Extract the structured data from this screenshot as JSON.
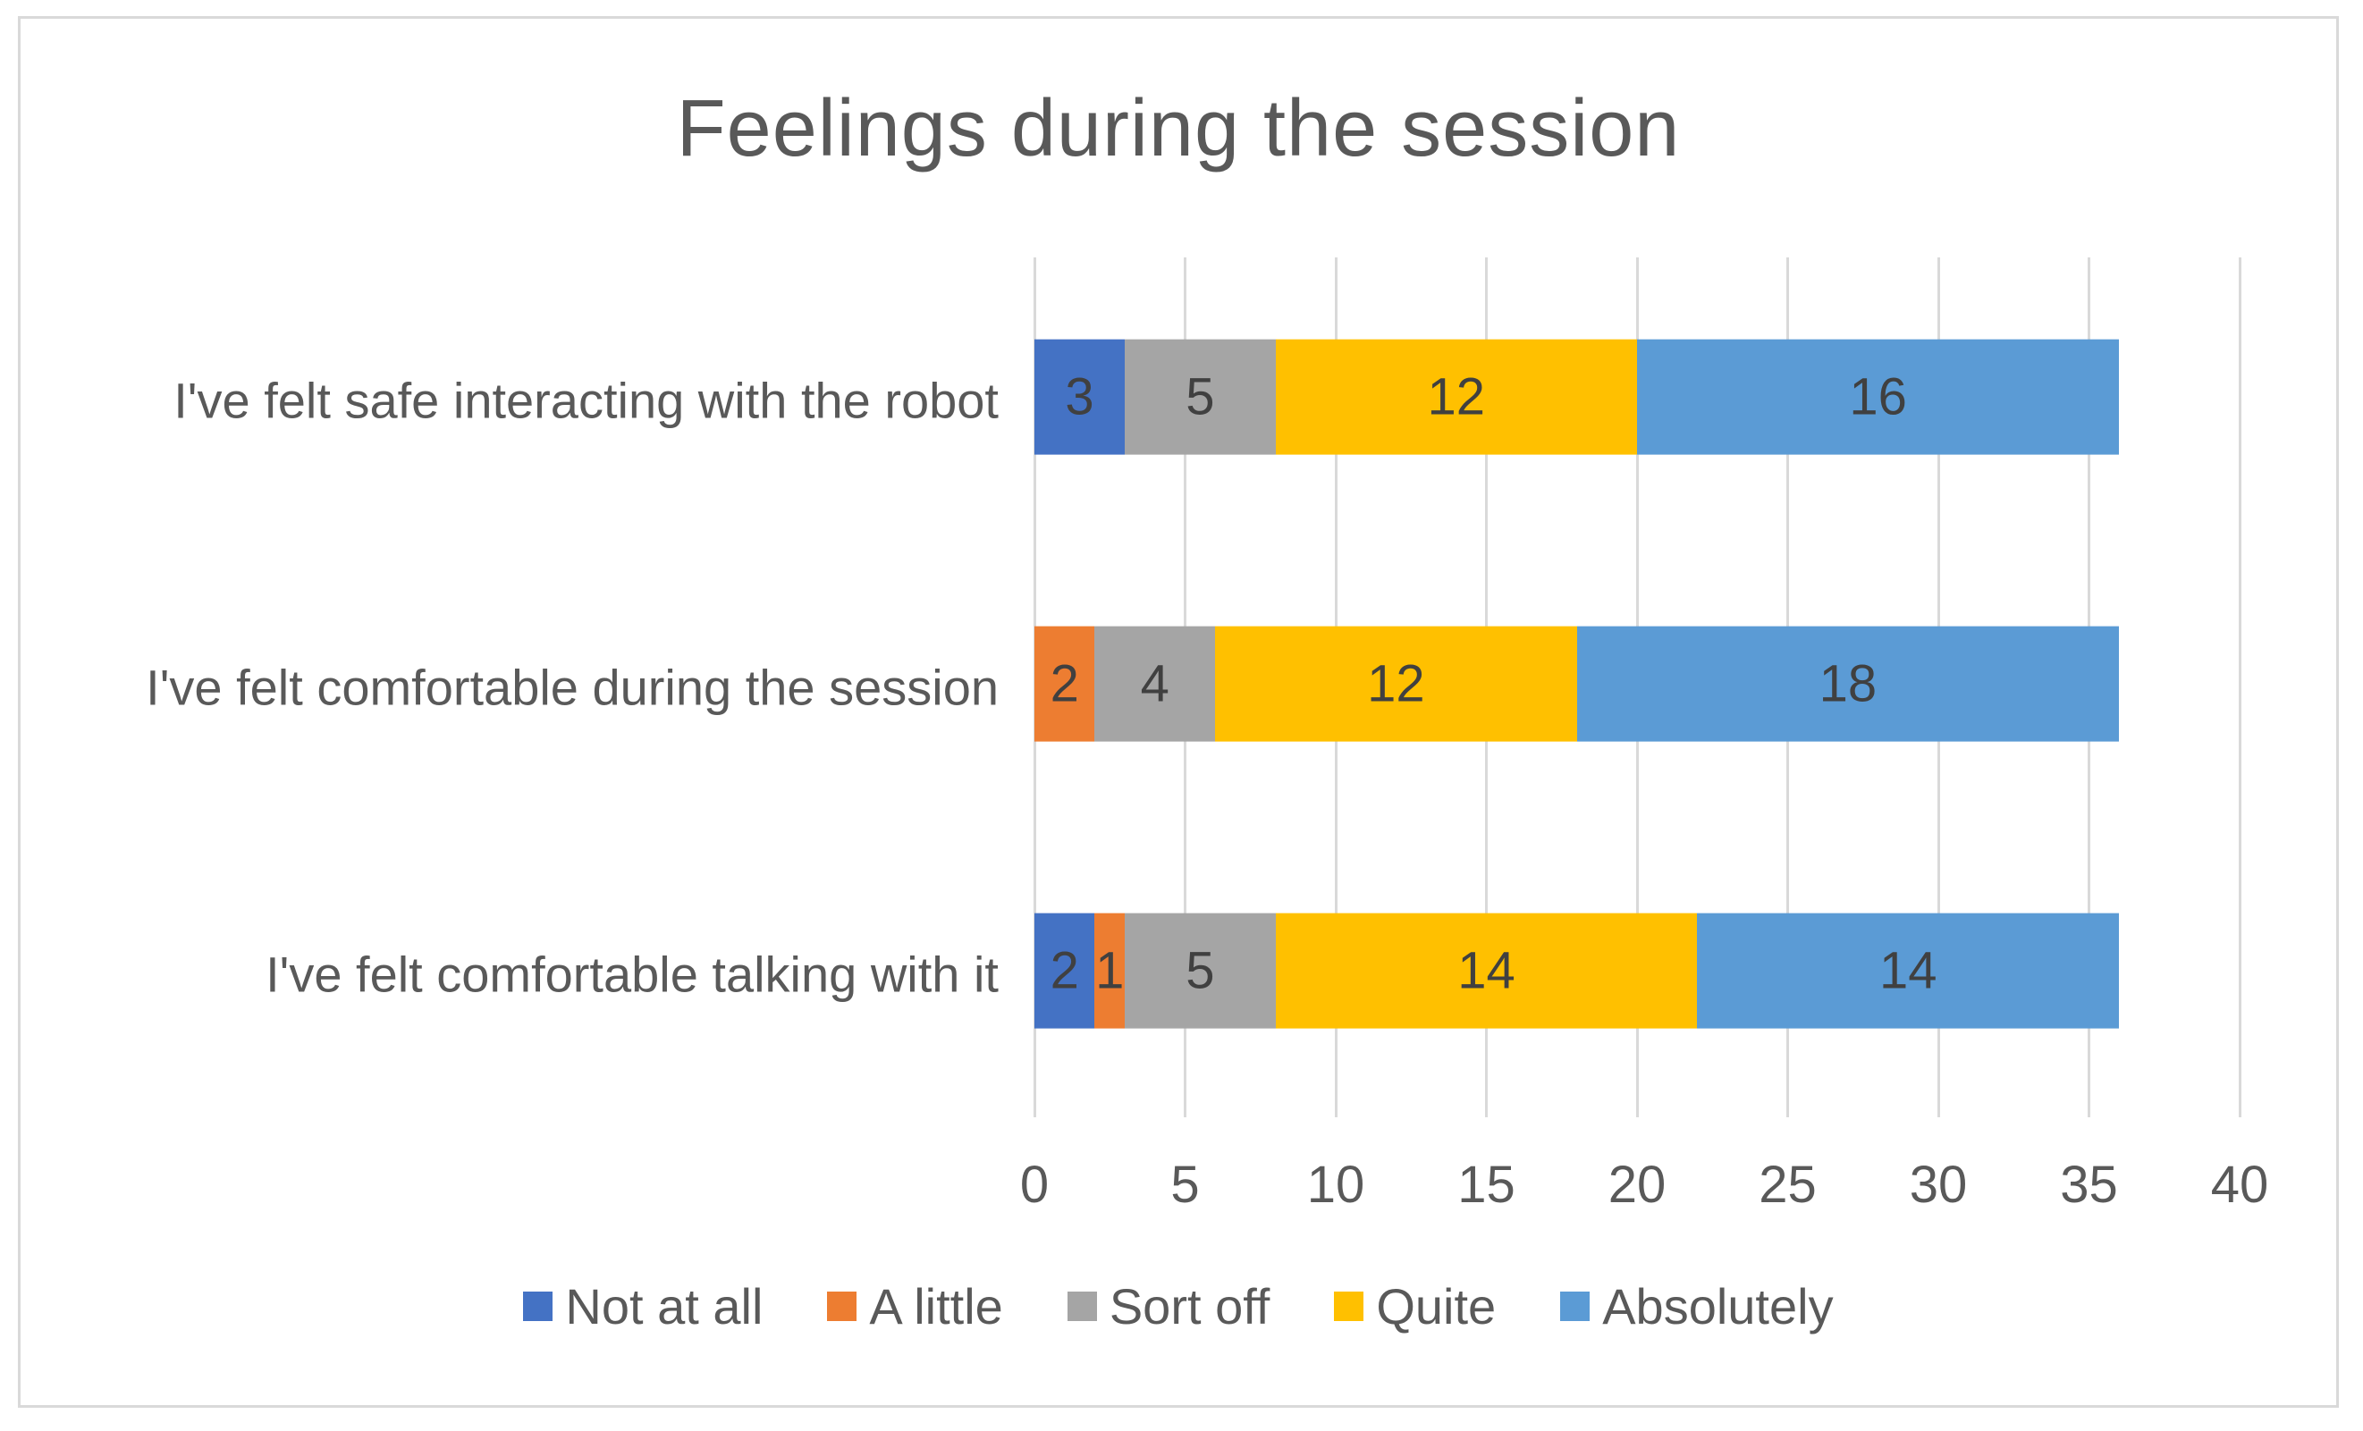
{
  "title": "Feelings during the session",
  "chart_data": {
    "type": "bar",
    "subtype": "horizontal-stacked",
    "title": "Feelings during the session",
    "categories": [
      "I've felt safe interacting with the robot",
      "I've felt comfortable during the session",
      "I've felt comfortable talking with it"
    ],
    "series": [
      {
        "name": "Not at all",
        "color": "#4472C4",
        "values": [
          3,
          0,
          2
        ]
      },
      {
        "name": "A little",
        "color": "#ED7D31",
        "values": [
          0,
          2,
          1
        ]
      },
      {
        "name": "Sort off",
        "color": "#A5A5A5",
        "values": [
          5,
          4,
          5
        ]
      },
      {
        "name": "Quite",
        "color": "#FFC000",
        "values": [
          12,
          12,
          14
        ]
      },
      {
        "name": "Absolutely",
        "color": "#5B9BD5",
        "values": [
          16,
          18,
          14
        ]
      }
    ],
    "xlabel": "",
    "ylabel": "",
    "xlim": [
      0,
      40
    ],
    "xticks": [
      0,
      5,
      10,
      15,
      20,
      25,
      30,
      35,
      40
    ],
    "grid": "vertical-only",
    "legend_position": "bottom",
    "data_labels_shown": true,
    "data_labels_hidden_when_zero": true
  },
  "styles": {
    "title_color": "#595959",
    "axis_text_color": "#595959",
    "category_text_color": "#595959",
    "data_label_color": "#404040",
    "gridline_color": "#D9D9D9",
    "frame_border_color": "#D9D9D9",
    "background_color": "#FFFFFF"
  }
}
